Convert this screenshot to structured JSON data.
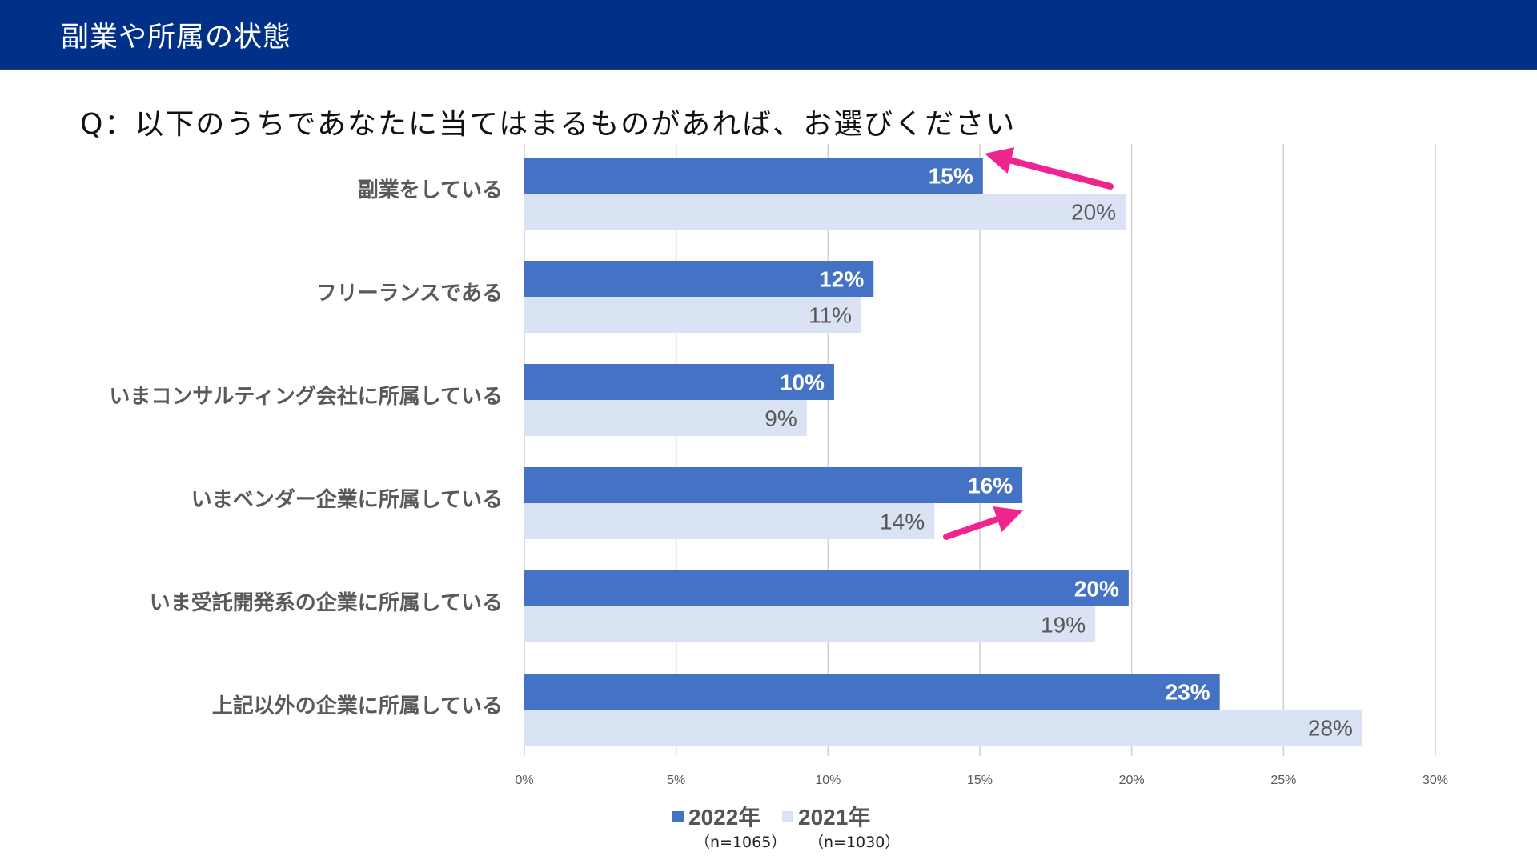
{
  "header": {
    "title": "副業や所属の状態"
  },
  "question": "Q：以下のうちであなたに当てはまるものがあれば、お選びください",
  "colors": {
    "header_bg": "#003087",
    "series_2022": "#4472c4",
    "series_2021": "#dae3f3",
    "arrow": "#f0248e",
    "grid": "#d0d0d0"
  },
  "legend": {
    "items": [
      {
        "label": "2022年",
        "note": "（n=1065）"
      },
      {
        "label": "2021年",
        "note": "（n=1030）"
      }
    ]
  },
  "annotations": [
    {
      "type": "arrow",
      "category": "副業をしている",
      "direction": "toward 2022 bar end",
      "color": "#f0248e"
    },
    {
      "type": "arrow",
      "category": "いまベンダー企業に所属している",
      "direction": "toward 2022 bar end",
      "color": "#f0248e"
    }
  ],
  "chart_data": {
    "type": "bar",
    "orientation": "horizontal",
    "categories": [
      "副業をしている",
      "フリーランスである",
      "いまコンサルティング会社に所属している",
      "いまベンダー企業に所属している",
      "いま受託開発系の企業に所属している",
      "上記以外の企業に所属している"
    ],
    "series": [
      {
        "name": "2022年",
        "values": [
          15.1,
          11.5,
          10.2,
          16.4,
          19.9,
          22.9
        ],
        "labels": [
          "15%",
          "12%",
          "10%",
          "16%",
          "20%",
          "23%"
        ],
        "color": "#4472c4"
      },
      {
        "name": "2021年",
        "values": [
          19.8,
          11.1,
          9.3,
          13.5,
          18.8,
          27.6
        ],
        "labels": [
          "20%",
          "11%",
          "9%",
          "14%",
          "19%",
          "28%"
        ],
        "color": "#dae3f3"
      }
    ],
    "xlim": [
      0,
      30
    ],
    "xticks": [
      "0%",
      "5%",
      "10%",
      "15%",
      "20%",
      "25%",
      "30%"
    ],
    "xtick_values": [
      0,
      5,
      10,
      15,
      20,
      25,
      30
    ],
    "grid": "vertical",
    "legend_position": "bottom"
  }
}
